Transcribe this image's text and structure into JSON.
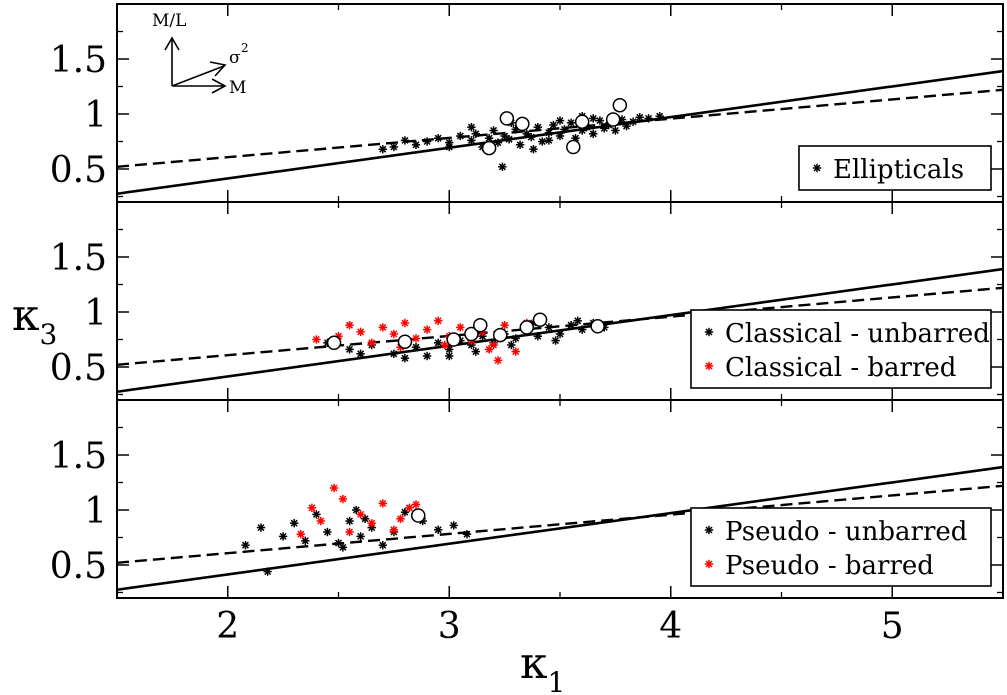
{
  "chart_data": {
    "type": "scatter",
    "xlabel_symbol": "κ",
    "xlabel_sub": "1",
    "ylabel_symbol": "κ",
    "ylabel_sub": "3",
    "xlim": [
      1.5,
      5.5
    ],
    "ylim": [
      0.2,
      2.0
    ],
    "x_ticks": [
      2,
      3,
      4,
      5
    ],
    "x_tick_labels": [
      "2",
      "3",
      "4",
      "5"
    ],
    "y_ticks": [
      0.5,
      1.0,
      1.5
    ],
    "y_tick_labels": [
      "0.5",
      "1",
      "1.5"
    ],
    "lines": {
      "solid": {
        "x": [
          1.5,
          5.5
        ],
        "y": [
          0.275,
          1.39
        ]
      },
      "dashed": {
        "x": [
          1.5,
          5.5
        ],
        "y": [
          0.52,
          1.22
        ]
      }
    },
    "arrows": {
      "labels": [
        "M/L",
        "σ",
        "2",
        "M"
      ]
    },
    "panels": [
      {
        "name": "ellipticals",
        "legend": [
          {
            "marker": "*",
            "color": "#000000",
            "label": "Ellipticals"
          }
        ],
        "series": [
          {
            "name": "Ellipticals",
            "color": "#000000",
            "marker": "asterisk",
            "points": [
              [
                2.85,
                0.72
              ],
              [
                2.9,
                0.75
              ],
              [
                2.95,
                0.78
              ],
              [
                3.0,
                0.74
              ],
              [
                3.05,
                0.8
              ],
              [
                3.1,
                0.76
              ],
              [
                3.12,
                0.82
              ],
              [
                3.15,
                0.7
              ],
              [
                3.18,
                0.78
              ],
              [
                3.2,
                0.85
              ],
              [
                3.22,
                0.74
              ],
              [
                3.25,
                0.8
              ],
              [
                3.27,
                0.77
              ],
              [
                3.3,
                0.86
              ],
              [
                3.32,
                0.72
              ],
              [
                3.35,
                0.82
              ],
              [
                3.37,
                0.79
              ],
              [
                3.4,
                0.88
              ],
              [
                3.42,
                0.75
              ],
              [
                3.45,
                0.83
              ],
              [
                3.47,
                0.9
              ],
              [
                3.5,
                0.8
              ],
              [
                3.52,
                0.86
              ],
              [
                3.55,
                0.92
              ],
              [
                3.57,
                0.78
              ],
              [
                3.6,
                0.85
              ],
              [
                3.62,
                0.88
              ],
              [
                3.65,
                0.82
              ],
              [
                3.68,
                0.94
              ],
              [
                3.7,
                0.87
              ],
              [
                3.72,
                0.9
              ],
              [
                3.75,
                0.85
              ],
              [
                3.78,
                0.95
              ],
              [
                3.8,
                0.89
              ],
              [
                3.83,
                0.93
              ],
              [
                3.86,
                0.97
              ],
              [
                3.9,
                0.96
              ],
              [
                3.95,
                0.98
              ],
              [
                2.75,
                0.7
              ],
              [
                2.8,
                0.76
              ],
              [
                2.7,
                0.68
              ],
              [
                3.24,
                0.52
              ],
              [
                3.38,
                0.68
              ],
              [
                3.6,
                0.98
              ],
              [
                3.1,
                0.88
              ],
              [
                3.0,
                0.7
              ],
              [
                3.45,
                0.76
              ],
              [
                3.65,
                0.96
              ],
              [
                3.28,
                0.92
              ],
              [
                3.5,
                0.94
              ]
            ]
          },
          {
            "name": "Ellipticals-open",
            "color": "#ffffff",
            "marker": "circle",
            "points": [
              [
                3.18,
                0.69
              ],
              [
                3.26,
                0.96
              ],
              [
                3.33,
                0.91
              ],
              [
                3.56,
                0.7
              ],
              [
                3.6,
                0.93
              ],
              [
                3.74,
                0.95
              ],
              [
                3.77,
                1.08
              ]
            ]
          }
        ]
      },
      {
        "name": "classical",
        "legend": [
          {
            "marker": "*",
            "color": "#000000",
            "label": "Classical - unbarred"
          },
          {
            "marker": "*",
            "color": "#ff0000",
            "label": "Classical - barred"
          }
        ],
        "series": [
          {
            "name": "Classical - unbarred",
            "color": "#000000",
            "marker": "asterisk",
            "points": [
              [
                2.45,
                0.72
              ],
              [
                2.55,
                0.66
              ],
              [
                2.65,
                0.7
              ],
              [
                2.75,
                0.62
              ],
              [
                2.85,
                0.68
              ],
              [
                2.9,
                0.6
              ],
              [
                2.95,
                0.72
              ],
              [
                3.0,
                0.66
              ],
              [
                3.05,
                0.74
              ],
              [
                3.1,
                0.7
              ],
              [
                3.15,
                0.78
              ],
              [
                3.2,
                0.72
              ],
              [
                3.25,
                0.8
              ],
              [
                3.3,
                0.76
              ],
              [
                3.35,
                0.84
              ],
              [
                3.4,
                0.78
              ],
              [
                3.45,
                0.86
              ],
              [
                3.5,
                0.8
              ],
              [
                3.55,
                0.88
              ],
              [
                3.6,
                0.84
              ],
              [
                3.65,
                0.9
              ],
              [
                3.7,
                0.86
              ],
              [
                2.8,
                0.58
              ],
              [
                3.0,
                0.6
              ],
              [
                3.12,
                0.64
              ],
              [
                3.28,
                0.7
              ],
              [
                3.48,
                0.74
              ],
              [
                3.58,
                0.92
              ],
              [
                2.6,
                0.62
              ],
              [
                3.38,
                0.9
              ]
            ]
          },
          {
            "name": "Classical - barred",
            "color": "#ff0000",
            "marker": "asterisk",
            "points": [
              [
                2.4,
                0.75
              ],
              [
                2.5,
                0.78
              ],
              [
                2.6,
                0.82
              ],
              [
                2.65,
                0.72
              ],
              [
                2.7,
                0.86
              ],
              [
                2.75,
                0.8
              ],
              [
                2.8,
                0.9
              ],
              [
                2.85,
                0.76
              ],
              [
                2.9,
                0.84
              ],
              [
                2.95,
                0.92
              ],
              [
                3.0,
                0.78
              ],
              [
                3.05,
                0.86
              ],
              [
                3.1,
                0.74
              ],
              [
                3.15,
                0.82
              ],
              [
                3.2,
                0.7
              ],
              [
                3.25,
                0.88
              ],
              [
                3.3,
                0.64
              ],
              [
                3.35,
                0.9
              ],
              [
                2.78,
                0.68
              ],
              [
                2.98,
                0.7
              ],
              [
                3.18,
                0.66
              ],
              [
                2.55,
                0.88
              ],
              [
                3.4,
                0.95
              ],
              [
                3.22,
                0.56
              ]
            ]
          },
          {
            "name": "Classical-open",
            "color": "#ffffff",
            "marker": "circle",
            "points": [
              [
                2.48,
                0.72
              ],
              [
                2.8,
                0.73
              ],
              [
                3.02,
                0.75
              ],
              [
                3.1,
                0.8
              ],
              [
                3.14,
                0.88
              ],
              [
                3.23,
                0.79
              ],
              [
                3.35,
                0.86
              ],
              [
                3.41,
                0.93
              ],
              [
                3.67,
                0.87
              ]
            ]
          }
        ]
      },
      {
        "name": "pseudo",
        "legend": [
          {
            "marker": "*",
            "color": "#000000",
            "label": "Pseudo - unbarred"
          },
          {
            "marker": "*",
            "color": "#ff0000",
            "label": "Pseudo - barred"
          }
        ],
        "series": [
          {
            "name": "Pseudo - unbarred",
            "color": "#000000",
            "marker": "asterisk",
            "points": [
              [
                2.08,
                0.68
              ],
              [
                2.15,
                0.84
              ],
              [
                2.18,
                0.44
              ],
              [
                2.25,
                0.76
              ],
              [
                2.3,
                0.88
              ],
              [
                2.35,
                0.72
              ],
              [
                2.4,
                0.96
              ],
              [
                2.45,
                0.8
              ],
              [
                2.5,
                0.7
              ],
              [
                2.55,
                0.9
              ],
              [
                2.58,
                1.0
              ],
              [
                2.6,
                0.76
              ],
              [
                2.65,
                0.84
              ],
              [
                2.7,
                0.68
              ],
              [
                2.75,
                0.8
              ],
              [
                2.8,
                0.98
              ],
              [
                2.88,
                0.9
              ],
              [
                2.95,
                0.82
              ],
              [
                3.02,
                0.86
              ],
              [
                3.08,
                0.78
              ],
              [
                2.52,
                0.66
              ],
              [
                2.62,
                0.92
              ]
            ]
          },
          {
            "name": "Pseudo - barred",
            "color": "#ff0000",
            "marker": "asterisk",
            "points": [
              [
                2.33,
                0.78
              ],
              [
                2.38,
                1.02
              ],
              [
                2.42,
                0.9
              ],
              [
                2.48,
                1.2
              ],
              [
                2.52,
                1.1
              ],
              [
                2.55,
                0.8
              ],
              [
                2.6,
                0.96
              ],
              [
                2.65,
                0.88
              ],
              [
                2.7,
                1.06
              ],
              [
                2.75,
                0.82
              ],
              [
                2.78,
                0.92
              ],
              [
                2.82,
                1.02
              ],
              [
                2.85,
                1.05
              ]
            ]
          },
          {
            "name": "Pseudo-open",
            "color": "#ffffff",
            "marker": "circle",
            "points": [
              [
                2.86,
                0.95
              ]
            ]
          }
        ]
      }
    ]
  }
}
